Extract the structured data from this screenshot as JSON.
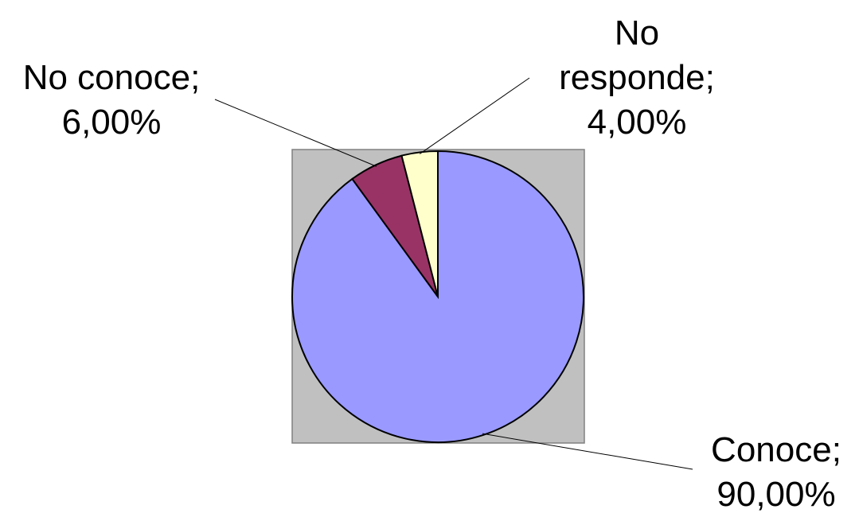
{
  "chart_data": {
    "type": "pie",
    "categories": [
      "Conoce",
      "No conoce",
      "No responde"
    ],
    "values": [
      90,
      6,
      4
    ],
    "value_labels": [
      "90,00%",
      "6,00%",
      "4,00%"
    ],
    "separator": ";",
    "colors": [
      "#9999ff",
      "#993366",
      "#ffffcc"
    ]
  }
}
